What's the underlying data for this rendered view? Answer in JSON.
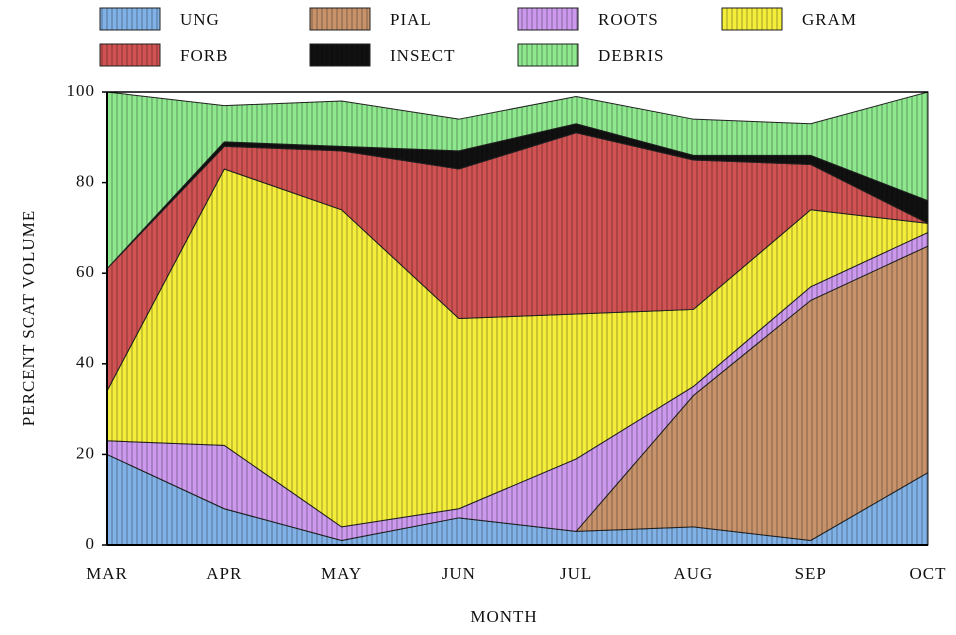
{
  "chart_data": {
    "type": "stacked-area",
    "x_label": "MONTH",
    "y_label": "PERCENT SCAT VOLUME",
    "categories": [
      "MAR",
      "APR",
      "MAY",
      "JUN",
      "JUL",
      "AUG",
      "SEP",
      "OCT"
    ],
    "series": [
      {
        "name": "UNG",
        "color": "#80b2e8",
        "values": [
          20,
          8,
          1,
          6,
          3,
          4,
          1,
          16
        ]
      },
      {
        "name": "PIAL",
        "color": "#c8936a",
        "values": [
          0,
          0,
          0,
          0,
          0,
          29,
          53,
          50
        ]
      },
      {
        "name": "ROOTS",
        "color": "#cc99ee",
        "values": [
          3,
          14,
          3,
          2,
          16,
          2,
          3,
          3
        ]
      },
      {
        "name": "GRAM",
        "color": "#f4ee3a",
        "values": [
          11,
          61,
          70,
          42,
          32,
          17,
          17,
          2
        ]
      },
      {
        "name": "FORB",
        "color": "#d05252",
        "values": [
          27,
          5,
          13,
          33,
          40,
          33,
          10,
          0
        ]
      },
      {
        "name": "INSECT",
        "color": "#111111",
        "values": [
          0,
          1,
          1,
          4,
          2,
          1,
          2,
          5
        ]
      },
      {
        "name": "DEBRIS",
        "color": "#8ee88e",
        "values": [
          39,
          8,
          10,
          7,
          6,
          8,
          7,
          24
        ]
      }
    ],
    "ylim": [
      0,
      100
    ],
    "yticks": [
      0,
      20,
      40,
      60,
      80,
      100
    ]
  }
}
